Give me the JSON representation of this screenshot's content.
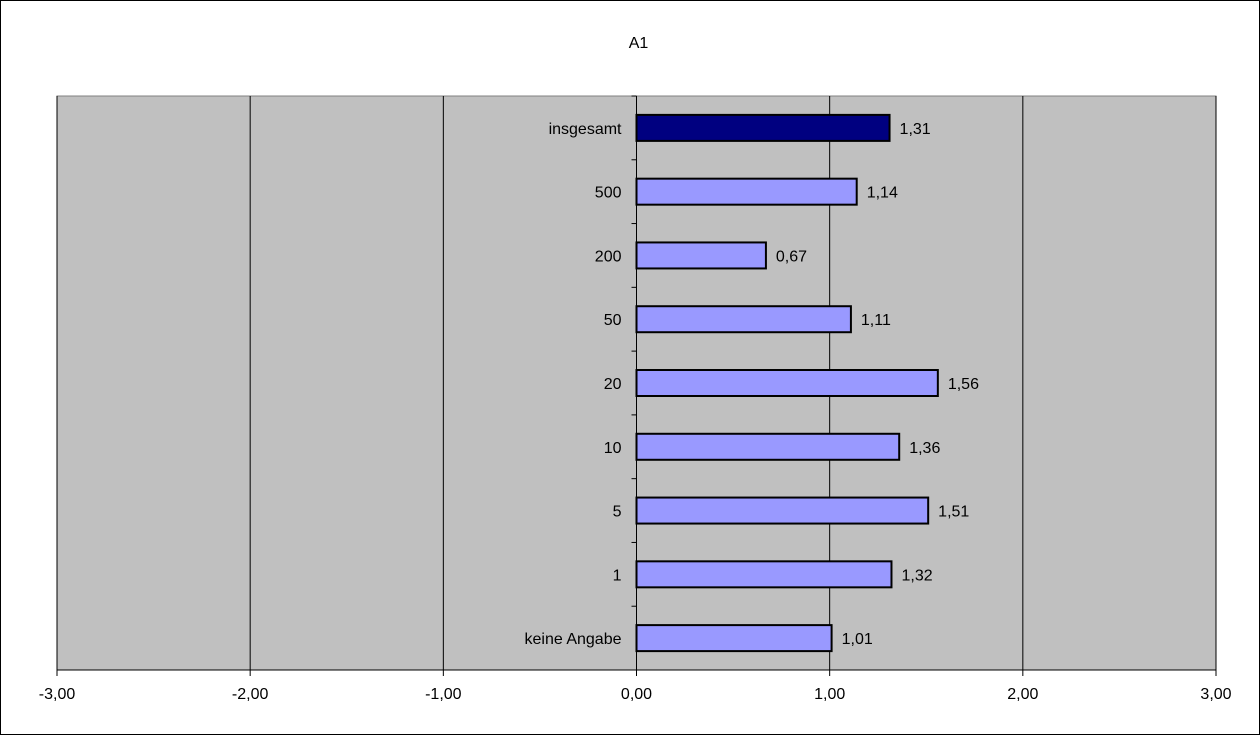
{
  "chart_data": {
    "type": "bar",
    "orientation": "horizontal",
    "title": "A1",
    "xlabel": "",
    "ylabel": "",
    "xlim": [
      -3,
      3
    ],
    "x_ticks": [
      -3,
      -2,
      -1,
      0,
      1,
      2,
      3
    ],
    "x_tick_labels": [
      "-3,00",
      "-2,00",
      "-1,00",
      "0,00",
      "1,00",
      "2,00",
      "3,00"
    ],
    "grid": true,
    "legend": "none",
    "categories": [
      "insgesamt",
      "500",
      "200",
      "50",
      "20",
      "10",
      "5",
      "1",
      "keine Angabe"
    ],
    "values": [
      1.31,
      1.14,
      0.67,
      1.11,
      1.56,
      1.36,
      1.51,
      1.32,
      1.01
    ],
    "value_labels": [
      "1,31",
      "1,14",
      "0,67",
      "1,11",
      "1,56",
      "1,36",
      "1,51",
      "1,32",
      "1,01"
    ],
    "highlight_category": "insgesamt",
    "colors": {
      "plot_background": "#c0c0c0",
      "bar_default": "#9999ff",
      "bar_highlight": "#000080",
      "gridline": "#000000"
    }
  }
}
